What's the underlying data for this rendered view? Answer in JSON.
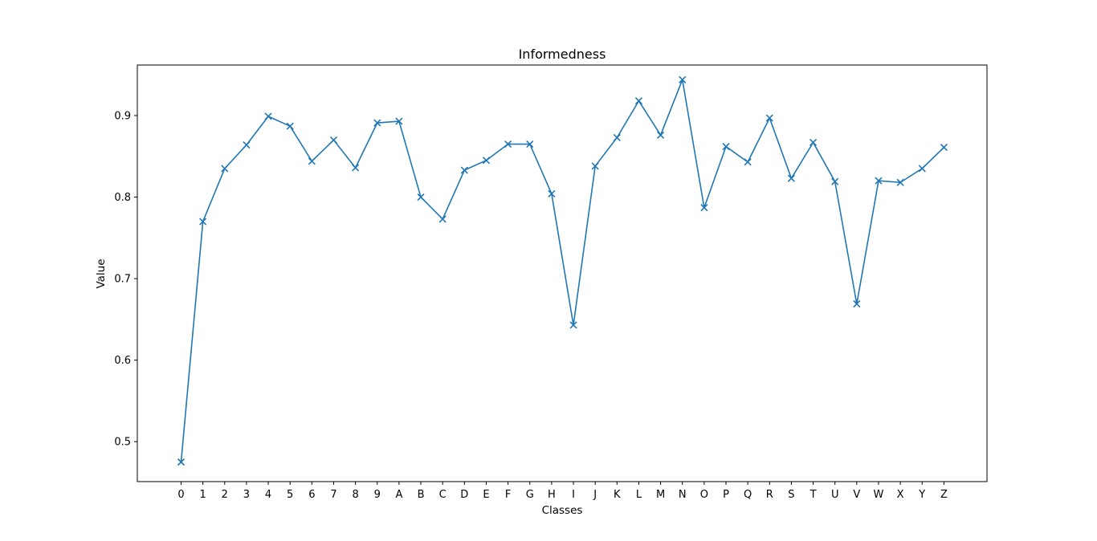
{
  "chart_data": {
    "type": "line",
    "title": "Informedness",
    "xlabel": "Classes",
    "ylabel": "Value",
    "categories": [
      "0",
      "1",
      "2",
      "3",
      "4",
      "5",
      "6",
      "7",
      "8",
      "9",
      "A",
      "B",
      "C",
      "D",
      "E",
      "F",
      "G",
      "H",
      "I",
      "J",
      "K",
      "L",
      "M",
      "N",
      "O",
      "P",
      "Q",
      "R",
      "S",
      "T",
      "U",
      "V",
      "W",
      "X",
      "Y",
      "Z"
    ],
    "series": [
      {
        "values": [
          0.475,
          0.77,
          0.835,
          0.864,
          0.899,
          0.887,
          0.844,
          0.87,
          0.836,
          0.891,
          0.893,
          0.8,
          0.773,
          0.833,
          0.845,
          0.865,
          0.865,
          0.804,
          0.643,
          0.838,
          0.873,
          0.918,
          0.876,
          0.944,
          0.787,
          0.862,
          0.843,
          0.897,
          0.823,
          0.867,
          0.819,
          0.669,
          0.82,
          0.818,
          0.835,
          0.861
        ],
        "color": "#1f77b4",
        "marker": "x"
      }
    ],
    "yticks": [
      "0.5",
      "0.6",
      "0.7",
      "0.8",
      "0.9"
    ],
    "ylim": [
      0.451,
      0.962
    ],
    "grid": false,
    "legend": "none"
  }
}
